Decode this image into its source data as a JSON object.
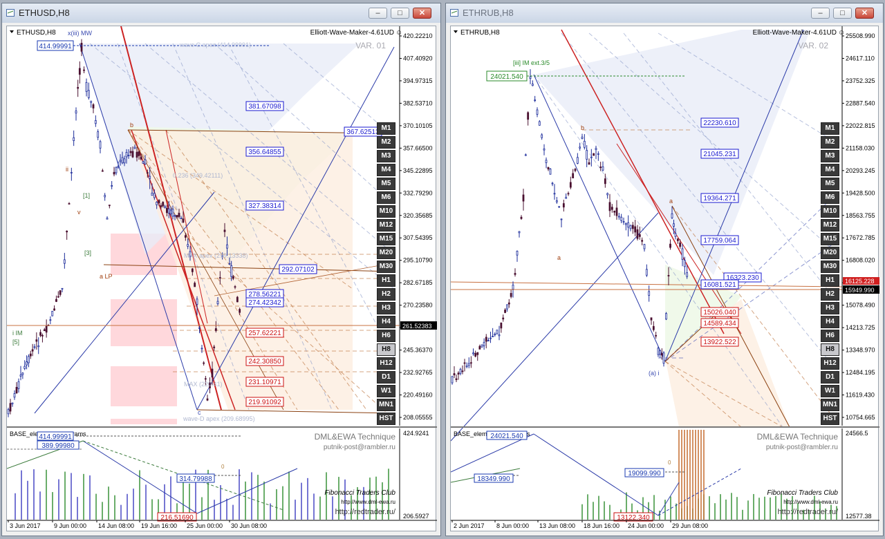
{
  "left": {
    "title": "ETHUSD,H8",
    "symbol": "ETHUSD,H8",
    "indicator": "Elliott-Wave-Maker-4.61UD",
    "variant": "VAR. 01",
    "wave_label_top": "x(iii) MW",
    "top_box": "414.99991",
    "top_label": "wave C apex (414.99991)",
    "fib_label_1": "0.236 (349.42111)",
    "fib_label_2": "MAX apex (299.13338)",
    "fib_label_3": "MAX (220.41)",
    "fib_label_4": "wave-D apex (209.68995)",
    "box_blue": [
      "381.67098",
      "367.62513",
      "356.64855",
      "327.38314",
      "292.07102",
      "278.56221",
      "274.42342"
    ],
    "box_red": [
      "257.62221",
      "242.30850",
      "231.10971",
      "219.91092"
    ],
    "current_price": "261.52383",
    "price_axis": [
      "420.22210",
      "407.40920",
      "394.97315",
      "382.53710",
      "370.10105",
      "357.66500",
      "345.22895",
      "332.79290",
      "320.35685",
      "307.54395",
      "295.10790",
      "282.67185",
      "270.23580",
      "257.79975",
      "245.36370",
      "232.92765",
      "220.49160",
      "208.05555"
    ],
    "sub_axis": [
      "424.9241",
      "206.5927"
    ],
    "sub_label": "BASE_elements_0_params",
    "sub_box": [
      "414.99991",
      "389.99980",
      "314.79988",
      "216.51690"
    ],
    "sub_zero": "0",
    "watermark_1": "DML&EWA Technique",
    "watermark_2": "putnik-post@rambler.ru",
    "club_1": "Fibonacci Traders Club",
    "club_2": "http://www.dml-ewa.ru",
    "club_3": "http://redtrader.ru/",
    "dates": [
      "3 Jun 2017",
      "9 Jun 00:00",
      "14 Jun 08:00",
      "19 Jun 16:00",
      "25 Jun 00:00",
      "30 Jun 08:00"
    ],
    "wave_labels": [
      "b",
      "a LP",
      "i IM",
      "ii",
      "v",
      "[5]",
      "[3]",
      "[1]",
      "c"
    ]
  },
  "right": {
    "title": "ETHRUB,H8",
    "symbol": "ETHRUB,H8",
    "indicator": "Elliott-Wave-Maker-4.61UD",
    "variant": "VAR. 02",
    "wave_label_top": "[iii] IM ext.3/5",
    "top_box": "24021.540",
    "box_blue": [
      "22230.610",
      "21045.231",
      "19364.271",
      "17759.064",
      "16323.230",
      "16081.521"
    ],
    "box_red": [
      "15026.040",
      "14589.434",
      "13922.522"
    ],
    "current_price": "15949.990",
    "current_price_2": "16125.228",
    "price_axis": [
      "25508.990",
      "24617.110",
      "23752.325",
      "22887.540",
      "22022.815",
      "21158.030",
      "20293.245",
      "19428.500",
      "18563.755",
      "17672.785",
      "16808.020",
      "15943.235",
      "15078.490",
      "14213.725",
      "13348.970",
      "12484.195",
      "11619.430",
      "10754.665"
    ],
    "sub_axis": [
      "24566.5",
      "12577.38"
    ],
    "sub_label": "BASE_elements_0_params",
    "sub_box": [
      "24021.540",
      "18349.990",
      "19099.990",
      "13122.340"
    ],
    "sub_zero": "0",
    "watermark_1": "DML&EWA Technique",
    "watermark_2": "putnik-post@rambler.ru",
    "club_1": "Fibonacci Traders Club",
    "club_2": "http://www.dml-ewa.ru",
    "club_3": "http://redtrader.ru/",
    "dates": [
      "2 Jun 2017",
      "8 Jun 00:00",
      "13 Jun 08:00",
      "18 Jun 16:00",
      "24 Jun 00:00",
      "29 Jun 08:00"
    ],
    "wave_labels": [
      "b",
      "a",
      "a",
      "(a) i"
    ]
  },
  "timeframes": [
    "M1",
    "M2",
    "M3",
    "M4",
    "M5",
    "M6",
    "M10",
    "M12",
    "M15",
    "M20",
    "M30",
    "H1",
    "H2",
    "H3",
    "H4",
    "H6",
    "H8",
    "H12",
    "D1",
    "W1",
    "MN1",
    "HST"
  ],
  "active_timeframe": "H8",
  "colors": {
    "bull": "#1a2a9a",
    "bear": "#4a1030",
    "fib_blue": "#2a3aa8",
    "fib_red": "#cc2222",
    "fib_orange": "#c06020",
    "zone_red": "#ffd8dc",
    "zone_blue": "#e8ecf8"
  }
}
